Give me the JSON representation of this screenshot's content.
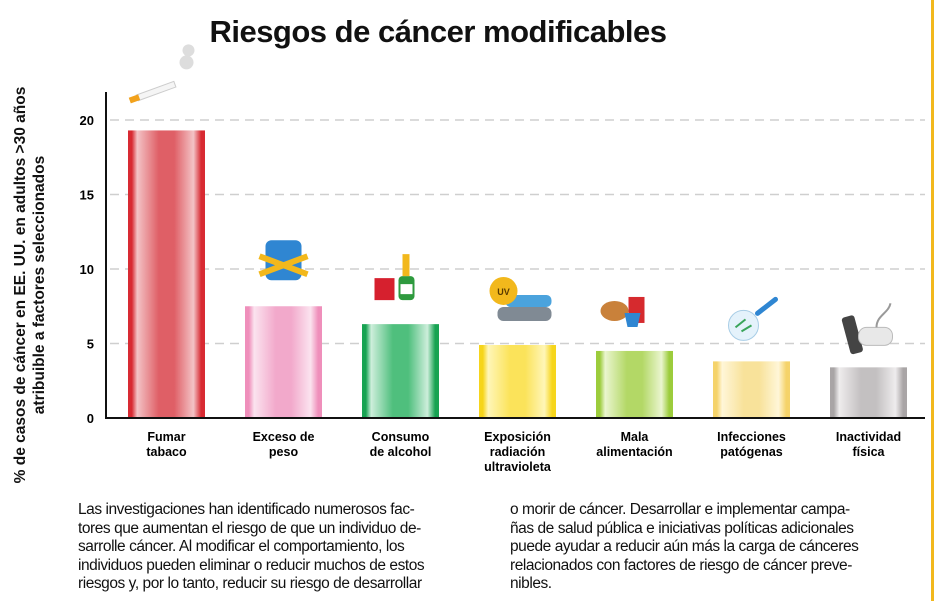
{
  "chart_data": {
    "type": "bar",
    "title": "Riesgos de cáncer modificables",
    "ylabel_lines": [
      "% de casos de cáncer en EE. UU. en adultos >30 años",
      "atribuible a factores seleccionados"
    ],
    "xlabel": "",
    "ylim": [
      0,
      20
    ],
    "yticks": [
      0,
      5,
      10,
      15,
      20
    ],
    "grid": "horizontal dashed",
    "categories": [
      [
        "Fumar",
        "tabaco"
      ],
      [
        "Exceso de",
        "peso"
      ],
      [
        "Consumo",
        "de alcohol"
      ],
      [
        "Exposición",
        "radiación",
        "ultravioleta"
      ],
      [
        "Mala",
        "alimentación"
      ],
      [
        "Infecciones",
        "patógenas"
      ],
      [
        "Inactividad",
        "física"
      ]
    ],
    "values": [
      19.3,
      7.5,
      6.3,
      4.9,
      4.5,
      3.8,
      3.4
    ],
    "colors": [
      [
        "#d82a32",
        "#f3c3c6",
        "#df5f66"
      ],
      [
        "#ef8fbb",
        "#fbe3ef",
        "#f2a9cb"
      ],
      [
        "#17a352",
        "#cdeedb",
        "#4fbf7d"
      ],
      [
        "#f6d51b",
        "#fff6b8",
        "#fbe35a"
      ],
      [
        "#9ccc3c",
        "#eaf5cf",
        "#b3d866"
      ],
      [
        "#f5d36a",
        "#fff6d8",
        "#f8e29a"
      ],
      [
        "#a9a5a6",
        "#eeeced",
        "#c3c0c1"
      ]
    ],
    "icons": [
      "cigarette-icon",
      "scale-icon",
      "alcohol-icon",
      "uv-tanning-bed-icon",
      "junk-food-icon",
      "petri-dish-icon",
      "remote-gamepad-icon"
    ]
  },
  "text": {
    "col1": [
      "Las investigaciones han identificado numerosos fac-",
      "tores que aumentan el riesgo de que un individuo de-",
      "sarrolle cáncer. Al modificar el comportamiento, los",
      "individuos pueden eliminar o reducir muchos de estos",
      "riesgos y, por lo tanto, reducir su riesgo de desarrollar"
    ],
    "col2": [
      "o morir de cáncer. Desarrollar e implementar campa-",
      "ñas de salud pública e iniciativas políticas adicionales",
      "puede ayudar a reducir aún más la carga de cánceres",
      "relacionados con factores de riesgo de cáncer preve-",
      "nibles."
    ]
  },
  "accent": "#f2b81c"
}
